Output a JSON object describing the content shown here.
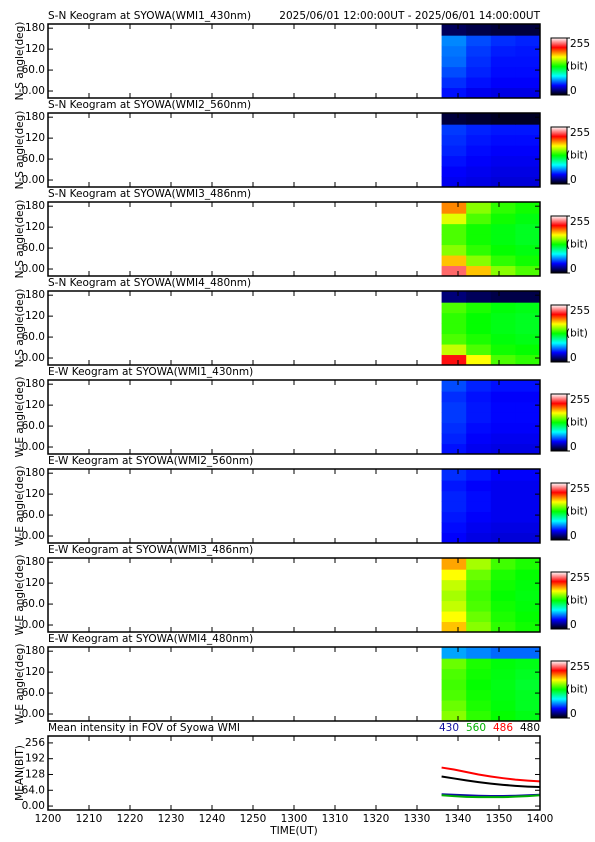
{
  "chart_data": [
    {
      "type": "heatmap",
      "title": "S-N Keogram at SYOWA(WMI1_430nm)",
      "subtitle": "2025/06/01 12:00:00UT - 2025/06/01 14:00:00UT",
      "ylabel": "N-S angle(deg)",
      "xlim": [
        720,
        840
      ],
      "ylim": [
        -20,
        192
      ],
      "yticks": [
        {
          "value": 0,
          "label": "0.00"
        },
        {
          "value": 60,
          "label": "60.0"
        },
        120,
        180
      ],
      "xbins": [
        816,
        822,
        828,
        834,
        840
      ],
      "ybins": [
        -20,
        10,
        40,
        70,
        100,
        130,
        160,
        192
      ],
      "values": [
        [
          45,
          40,
          38,
          38
        ],
        [
          50,
          45,
          42,
          42
        ],
        [
          55,
          48,
          44,
          44
        ],
        [
          60,
          50,
          45,
          45
        ],
        [
          62,
          52,
          47,
          46
        ],
        [
          65,
          55,
          50,
          48
        ],
        [
          15,
          12,
          10,
          10
        ]
      ],
      "clim": [
        0,
        255
      ],
      "cticks": [
        0,
        255
      ],
      "colorbar_label": "(bit)",
      "colormap": [
        "#000000",
        "#0000ff",
        "#00ffff",
        "#00ff00",
        "#ffff00",
        "#ff0000",
        "#ffffff"
      ]
    },
    {
      "type": "heatmap",
      "title": "S-N Keogram at SYOWA(WMI2_560nm)",
      "ylabel": "N-S angle(deg)",
      "xlim": [
        720,
        840
      ],
      "ylim": [
        -20,
        192
      ],
      "yticks": [
        {
          "value": 0,
          "label": "0.00"
        },
        {
          "value": 60,
          "label": "60.0"
        },
        120,
        180
      ],
      "xbins": [
        816,
        822,
        828,
        834,
        840
      ],
      "ybins": [
        -20,
        10,
        40,
        70,
        100,
        130,
        160,
        192
      ],
      "values": [
        [
          40,
          38,
          36,
          36
        ],
        [
          42,
          40,
          38,
          38
        ],
        [
          45,
          42,
          40,
          40
        ],
        [
          48,
          44,
          42,
          42
        ],
        [
          50,
          46,
          44,
          44
        ],
        [
          52,
          48,
          46,
          46
        ],
        [
          10,
          8,
          6,
          6
        ]
      ],
      "clim": [
        0,
        255
      ],
      "cticks": [
        0,
        255
      ],
      "colorbar_label": "(bit)",
      "colormap": [
        "#000000",
        "#0000ff",
        "#00ffff",
        "#00ff00",
        "#ffff00",
        "#ff0000",
        "#ffffff"
      ]
    },
    {
      "type": "heatmap",
      "title": "S-N Keogram at SYOWA(WMI3_486nm)",
      "ylabel": "N-S angle(deg)",
      "xlim": [
        720,
        840
      ],
      "ylim": [
        -20,
        192
      ],
      "yticks": [
        {
          "value": 0,
          "label": "0.00"
        },
        {
          "value": 60,
          "label": "60.0"
        },
        120,
        180
      ],
      "xbins": [
        816,
        822,
        828,
        834,
        840
      ],
      "ybins": [
        -20,
        10,
        40,
        70,
        100,
        130,
        160,
        192
      ],
      "values": [
        [
          230,
          180,
          150,
          140
        ],
        [
          180,
          150,
          135,
          130
        ],
        [
          150,
          135,
          128,
          125
        ],
        [
          140,
          130,
          125,
          122
        ],
        [
          140,
          130,
          125,
          122
        ],
        [
          165,
          140,
          130,
          125
        ],
        [
          190,
          150,
          135,
          130
        ]
      ],
      "clim": [
        0,
        255
      ],
      "cticks": [
        0,
        255
      ],
      "colorbar_label": "(bit)",
      "colormap": [
        "#000000",
        "#0000ff",
        "#00ffff",
        "#00ff00",
        "#ffff00",
        "#ff0000",
        "#ffffff"
      ]
    },
    {
      "type": "heatmap",
      "title": "S-N Keogram at SYOWA(WMI4_480nm)",
      "ylabel": "N-S angle(deg)",
      "xlim": [
        720,
        840
      ],
      "ylim": [
        -20,
        192
      ],
      "yticks": [
        {
          "value": 0,
          "label": "0.00"
        },
        {
          "value": 60,
          "label": "60.0"
        },
        120,
        180
      ],
      "xbins": [
        816,
        822,
        828,
        834,
        840
      ],
      "ybins": [
        -20,
        10,
        40,
        70,
        100,
        130,
        160,
        192
      ],
      "values": [
        [
          215,
          170,
          140,
          135
        ],
        [
          160,
          140,
          130,
          128
        ],
        [
          140,
          132,
          126,
          124
        ],
        [
          135,
          128,
          124,
          122
        ],
        [
          135,
          128,
          124,
          122
        ],
        [
          140,
          132,
          126,
          124
        ],
        [
          20,
          15,
          12,
          12
        ]
      ],
      "clim": [
        0,
        255
      ],
      "cticks": [
        0,
        255
      ],
      "colorbar_label": "(bit)",
      "colormap": [
        "#000000",
        "#0000ff",
        "#00ffff",
        "#00ff00",
        "#ffff00",
        "#ff0000",
        "#ffffff"
      ]
    },
    {
      "type": "heatmap",
      "title": "E-W Keogram at SYOWA(WMI1_430nm)",
      "ylabel": "W-E angle(deg)",
      "xlim": [
        720,
        840
      ],
      "ylim": [
        -20,
        192
      ],
      "yticks": [
        {
          "value": 0,
          "label": "0.00"
        },
        {
          "value": 60,
          "label": "60.0"
        },
        120,
        180
      ],
      "xbins": [
        816,
        822,
        828,
        834,
        840
      ],
      "ybins": [
        -20,
        10,
        40,
        70,
        100,
        130,
        160,
        192
      ],
      "values": [
        [
          45,
          40,
          38,
          38
        ],
        [
          48,
          42,
          40,
          40
        ],
        [
          50,
          44,
          42,
          42
        ],
        [
          52,
          46,
          43,
          43
        ],
        [
          52,
          46,
          43,
          43
        ],
        [
          50,
          45,
          42,
          42
        ],
        [
          55,
          48,
          45,
          45
        ]
      ],
      "clim": [
        0,
        255
      ],
      "cticks": [
        0,
        255
      ],
      "colorbar_label": "(bit)",
      "colormap": [
        "#000000",
        "#0000ff",
        "#00ffff",
        "#00ff00",
        "#ffff00",
        "#ff0000",
        "#ffffff"
      ]
    },
    {
      "type": "heatmap",
      "title": "E-W Keogram at SYOWA(WMI2_560nm)",
      "ylabel": "W-E angle(deg)",
      "xlim": [
        720,
        840
      ],
      "ylim": [
        -20,
        192
      ],
      "yticks": [
        {
          "value": 0,
          "label": "0.00"
        },
        {
          "value": 60,
          "label": "60.0"
        },
        120,
        180
      ],
      "xbins": [
        816,
        822,
        828,
        834,
        840
      ],
      "ybins": [
        -20,
        10,
        40,
        70,
        100,
        130,
        160,
        192
      ],
      "values": [
        [
          42,
          38,
          36,
          36
        ],
        [
          44,
          40,
          38,
          38
        ],
        [
          46,
          42,
          40,
          40
        ],
        [
          48,
          44,
          40,
          40
        ],
        [
          48,
          44,
          40,
          40
        ],
        [
          46,
          42,
          40,
          40
        ],
        [
          50,
          46,
          42,
          42
        ]
      ],
      "clim": [
        0,
        255
      ],
      "cticks": [
        0,
        255
      ],
      "colorbar_label": "(bit)",
      "colormap": [
        "#000000",
        "#0000ff",
        "#00ffff",
        "#00ff00",
        "#ffff00",
        "#ff0000",
        "#ffffff"
      ]
    },
    {
      "type": "heatmap",
      "title": "E-W Keogram at SYOWA(WMI3_486nm)",
      "ylabel": "W-E angle(deg)",
      "xlim": [
        720,
        840
      ],
      "ylim": [
        -20,
        192
      ],
      "yticks": [
        {
          "value": 0,
          "label": "0.00"
        },
        {
          "value": 60,
          "label": "60.0"
        },
        120,
        180
      ],
      "xbins": [
        816,
        822,
        828,
        834,
        840
      ],
      "ybins": [
        -20,
        10,
        40,
        70,
        100,
        130,
        160,
        192
      ],
      "values": [
        [
          180,
          150,
          135,
          130
        ],
        [
          170,
          145,
          132,
          128
        ],
        [
          160,
          140,
          130,
          126
        ],
        [
          155,
          138,
          128,
          125
        ],
        [
          160,
          140,
          130,
          126
        ],
        [
          170,
          145,
          132,
          128
        ],
        [
          185,
          155,
          138,
          132
        ]
      ],
      "clim": [
        0,
        255
      ],
      "cticks": [
        0,
        255
      ],
      "colorbar_label": "(bit)",
      "colormap": [
        "#000000",
        "#0000ff",
        "#00ffff",
        "#00ff00",
        "#ffff00",
        "#ff0000",
        "#ffffff"
      ]
    },
    {
      "type": "heatmap",
      "title": "E-W Keogram at SYOWA(WMI4_480nm)",
      "ylabel": "W-E angle(deg)",
      "xlim": [
        720,
        840
      ],
      "ylim": [
        -20,
        192
      ],
      "yticks": [
        {
          "value": 0,
          "label": "0.00"
        },
        {
          "value": 60,
          "label": "60.0"
        },
        120,
        180
      ],
      "xbins": [
        816,
        822,
        828,
        834,
        840
      ],
      "ybins": [
        -20,
        10,
        40,
        70,
        100,
        130,
        160,
        192
      ],
      "values": [
        [
          150,
          135,
          128,
          124
        ],
        [
          145,
          132,
          126,
          122
        ],
        [
          140,
          130,
          125,
          122
        ],
        [
          138,
          128,
          124,
          120
        ],
        [
          140,
          130,
          125,
          122
        ],
        [
          145,
          132,
          126,
          124
        ],
        [
          70,
          65,
          60,
          60
        ]
      ],
      "clim": [
        0,
        255
      ],
      "cticks": [
        0,
        255
      ],
      "colorbar_label": "(bit)",
      "colormap": [
        "#000000",
        "#0000ff",
        "#00ffff",
        "#00ff00",
        "#ffff00",
        "#ff0000",
        "#ffffff"
      ]
    },
    {
      "type": "line",
      "title": "Mean intensity in FOV of Syowa WMI",
      "ylabel": "MEAN(BIT)",
      "xlabel": "TIME(UT)",
      "xlim": [
        720,
        840
      ],
      "ylim": [
        -16,
        284
      ],
      "xticks": [
        {
          "value": 720,
          "label": "1200"
        },
        {
          "value": 730,
          "label": "1210"
        },
        {
          "value": 740,
          "label": "1220"
        },
        {
          "value": 750,
          "label": "1230"
        },
        {
          "value": 760,
          "label": "1240"
        },
        {
          "value": 770,
          "label": "1250"
        },
        {
          "value": 780,
          "label": "1300"
        },
        {
          "value": 790,
          "label": "1310"
        },
        {
          "value": 800,
          "label": "1320"
        },
        {
          "value": 810,
          "label": "1330"
        },
        {
          "value": 820,
          "label": "1340"
        },
        {
          "value": 830,
          "label": "1350"
        },
        {
          "value": 840,
          "label": "1400"
        }
      ],
      "yticks": [
        {
          "value": 0,
          "label": "0.00"
        },
        {
          "value": 64,
          "label": "64.0"
        },
        128,
        192,
        256
      ],
      "legend": "top-right",
      "x": [
        816,
        819,
        822,
        825,
        828,
        831,
        834,
        837,
        840
      ],
      "series": [
        {
          "name": "430",
          "color": "#1010a0",
          "values": [
            48,
            46,
            44,
            42,
            41,
            41,
            42,
            44,
            46
          ]
        },
        {
          "name": "560",
          "color": "#00b000",
          "values": [
            44,
            40,
            37,
            36,
            36,
            36,
            38,
            40,
            44
          ]
        },
        {
          "name": "486",
          "color": "#ff0000",
          "values": [
            156,
            148,
            138,
            128,
            120,
            113,
            107,
            103,
            100
          ]
        },
        {
          "name": "480",
          "color": "#000000",
          "values": [
            120,
            112,
            104,
            97,
            91,
            86,
            82,
            79,
            77
          ]
        }
      ]
    }
  ]
}
